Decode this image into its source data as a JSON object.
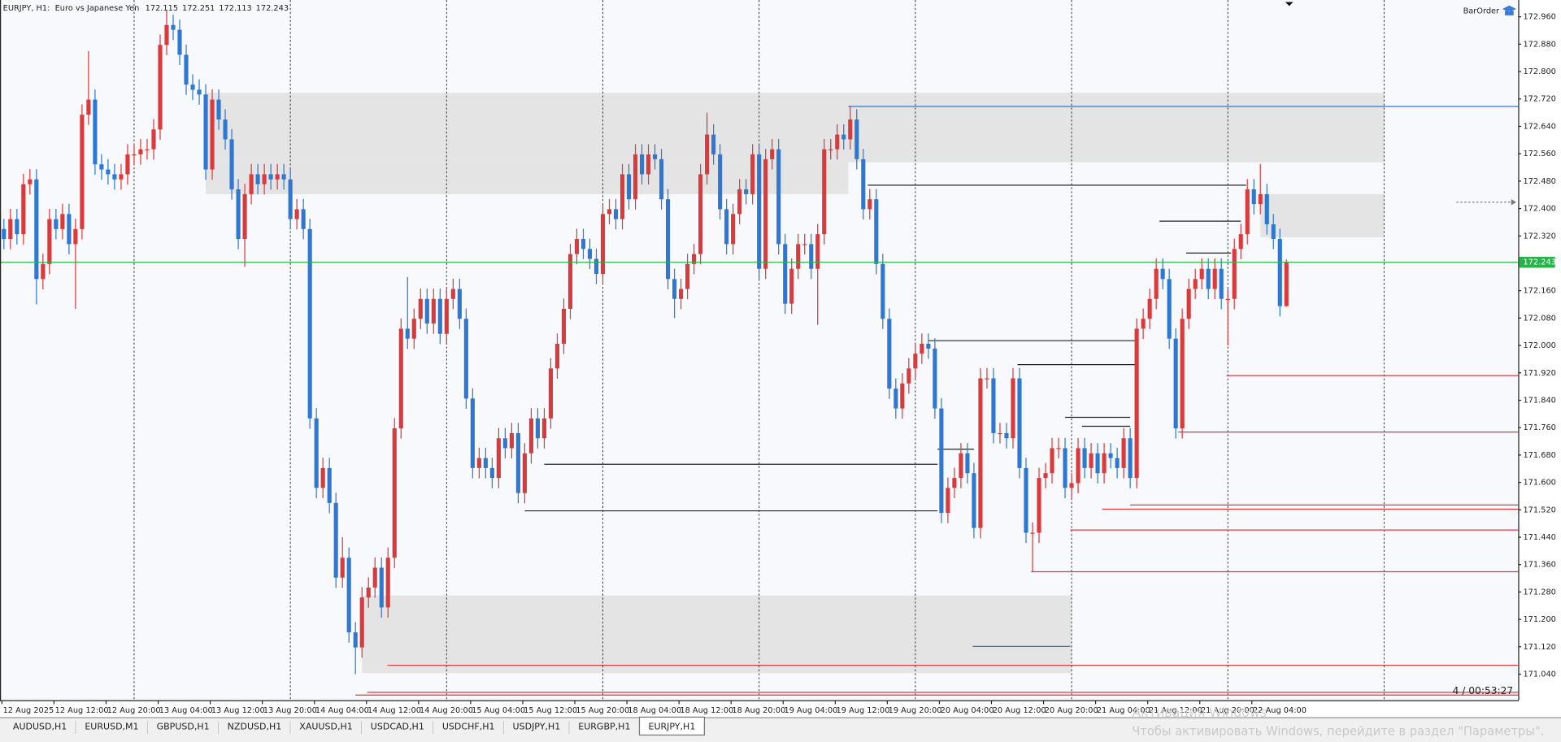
{
  "chart_data": {
    "type": "candlestick",
    "title": "EURJPY, H1:  Euro vs Japanese Yen",
    "button": "BarOrder",
    "bar_timer": "4 / 00:53:27",
    "up_color": "#d93a3c",
    "down_color": "#2e78d2",
    "zone_color": "#e4e4e4",
    "current_price_color": "#27b34a",
    "background": "#f7f9fc",
    "ylim": [
      170.964,
      173.009
    ],
    "yticks": [
      {
        "value": 172.96,
        "label": "172.960"
      },
      {
        "value": 172.88,
        "label": "172.880"
      },
      {
        "value": 172.8,
        "label": "172.800"
      },
      {
        "value": 172.72,
        "label": "172.720"
      },
      {
        "value": 172.64,
        "label": "172.640"
      },
      {
        "value": 172.56,
        "label": "172.560"
      },
      {
        "value": 172.48,
        "label": "172.480"
      },
      {
        "value": 172.4,
        "label": "172.400"
      },
      {
        "value": 172.32,
        "label": "172.320"
      },
      {
        "value": 172.16,
        "label": "172.160"
      },
      {
        "value": 172.08,
        "label": "172.080"
      },
      {
        "value": 172,
        "label": "172.000"
      },
      {
        "value": 171.92,
        "label": "171.920"
      },
      {
        "value": 171.84,
        "label": "171.840"
      },
      {
        "value": 171.76,
        "label": "171.760"
      },
      {
        "value": 171.68,
        "label": "171.680"
      },
      {
        "value": 171.6,
        "label": "171.600"
      },
      {
        "value": 171.52,
        "label": "171.520"
      },
      {
        "value": 171.44,
        "label": "171.440"
      },
      {
        "value": 171.36,
        "label": "171.360"
      },
      {
        "value": 171.28,
        "label": "171.280"
      },
      {
        "value": 171.2,
        "label": "171.200"
      },
      {
        "value": 171.12,
        "label": "171.120"
      },
      {
        "value": 171.04,
        "label": "171.040"
      }
    ],
    "xlim": [
      -0.6,
      232.6
    ],
    "xticks": [
      {
        "value": 0,
        "label": "12 Aug 2025"
      },
      {
        "value": 8,
        "label": "12 Aug 12:00"
      },
      {
        "value": 16,
        "label": "12 Aug 20:00"
      },
      {
        "value": 24,
        "label": "13 Aug 04:00"
      },
      {
        "value": 32,
        "label": "13 Aug 12:00"
      },
      {
        "value": 40,
        "label": "13 Aug 20:00"
      },
      {
        "value": 48,
        "label": "14 Aug 04:00"
      },
      {
        "value": 56,
        "label": "14 Aug 12:00"
      },
      {
        "value": 64,
        "label": "14 Aug 20:00"
      },
      {
        "value": 72,
        "label": "15 Aug 04:00"
      },
      {
        "value": 80,
        "label": "15 Aug 12:00"
      },
      {
        "value": 88,
        "label": "15 Aug 20:00"
      },
      {
        "value": 96,
        "label": "18 Aug 04:00"
      },
      {
        "value": 104,
        "label": "18 Aug 12:00"
      },
      {
        "value": 112,
        "label": "18 Aug 20:00"
      },
      {
        "value": 120,
        "label": "19 Aug 04:00"
      },
      {
        "value": 128,
        "label": "19 Aug 12:00"
      },
      {
        "value": 136,
        "label": "19 Aug 20:00"
      },
      {
        "value": 144,
        "label": "20 Aug 04:00"
      },
      {
        "value": 152,
        "label": "20 Aug 12:00"
      },
      {
        "value": 160,
        "label": "20 Aug 20:00"
      },
      {
        "value": 168,
        "label": "21 Aug 04:00"
      },
      {
        "value": 176,
        "label": "21 Aug 12:00"
      },
      {
        "value": 184,
        "label": "21 Aug 20:00"
      },
      {
        "value": 192,
        "label": "22 Aug 04:00"
      }
    ],
    "separators": [
      20,
      44,
      68,
      92,
      116,
      140,
      164,
      188,
      212
    ],
    "open": [
      172.34,
      172.311,
      172.369,
      172.325,
      172.471,
      172.485,
      172.194,
      172.238,
      172.369,
      172.34,
      172.384,
      172.296,
      172.34,
      172.674,
      172.718,
      172.529,
      172.514,
      172.5,
      172.485,
      172.5,
      172.558,
      172.558,
      172.573,
      172.573,
      172.631,
      172.878,
      172.936,
      172.922,
      172.849,
      172.762,
      172.747,
      172.733,
      172.514,
      172.718,
      172.66,
      172.602,
      172.456,
      172.311,
      172.442,
      172.5,
      172.471,
      172.5,
      172.485,
      172.5,
      172.485,
      172.369,
      172.398,
      172.34,
      171.787,
      171.584,
      171.642,
      171.54,
      171.322,
      171.38,
      171.162,
      171.118,
      171.264,
      171.293,
      171.351,
      171.235,
      171.38,
      171.758,
      172.049,
      172.02,
      172.078,
      172.136,
      172.064,
      172.136,
      172.034,
      172.136,
      172.165,
      172.078,
      171.845,
      171.642,
      171.671,
      171.642,
      171.613,
      171.729,
      171.7,
      171.744,
      171.569,
      171.685,
      171.787,
      171.729,
      171.787,
      171.933,
      172.005,
      172.107,
      172.267,
      172.311,
      172.282,
      172.253,
      172.209,
      172.384,
      172.398,
      172.369,
      172.5,
      172.427,
      172.558,
      172.5,
      172.558,
      172.544,
      172.427,
      172.194,
      172.136,
      172.165,
      172.238,
      172.267,
      172.5,
      172.616,
      172.558,
      172.398,
      172.296,
      172.384,
      172.456,
      172.442,
      172.558,
      172.224,
      172.544,
      172.573,
      172.296,
      172.122,
      172.224,
      172.296,
      172.296,
      172.224,
      172.325,
      172.573,
      172.573,
      172.616,
      172.602,
      172.66,
      172.544,
      172.398,
      172.427,
      172.238,
      172.078,
      171.874,
      171.816,
      171.889,
      171.933,
      171.976,
      172.005,
      171.991,
      171.816,
      171.511,
      171.584,
      171.613,
      171.685,
      171.627,
      171.467,
      171.904,
      171.904,
      171.744,
      171.744,
      171.729,
      171.904,
      171.642,
      171.453,
      171.453,
      171.613,
      171.627,
      171.7,
      171.7,
      171.584,
      171.598,
      171.7,
      171.642,
      171.685,
      171.627,
      171.685,
      171.671,
      171.642,
      171.729,
      171.613,
      172.049,
      172.078,
      172.136,
      172.224,
      172.194,
      172.02,
      171.758,
      172.078,
      172.165,
      172.194,
      172.224,
      172.165,
      172.224,
      172.136,
      172.136,
      172.282,
      172.325,
      172.456,
      172.413,
      172.442,
      172.354,
      172.311,
      172.115
    ],
    "high": [
      172.37,
      172.399,
      172.399,
      172.501,
      172.515,
      172.515,
      172.268,
      172.399,
      172.399,
      172.414,
      172.414,
      172.37,
      172.704,
      172.86,
      172.748,
      172.559,
      172.544,
      172.53,
      172.53,
      172.588,
      172.588,
      172.603,
      172.603,
      172.661,
      172.908,
      172.98,
      172.966,
      172.952,
      172.879,
      172.792,
      172.777,
      172.763,
      172.748,
      172.748,
      172.69,
      172.632,
      172.486,
      172.472,
      172.53,
      172.53,
      172.53,
      172.53,
      172.53,
      172.53,
      172.515,
      172.428,
      172.428,
      172.37,
      171.817,
      171.672,
      171.672,
      171.57,
      171.44,
      171.41,
      171.192,
      171.294,
      171.323,
      171.381,
      171.381,
      171.41,
      171.788,
      172.079,
      172.2,
      172.108,
      172.166,
      172.166,
      172.166,
      172.166,
      172.166,
      172.195,
      172.195,
      172.108,
      171.875,
      171.701,
      171.701,
      171.672,
      171.759,
      171.759,
      171.774,
      171.774,
      171.715,
      171.817,
      171.817,
      171.817,
      171.963,
      172.035,
      172.137,
      172.297,
      172.341,
      172.341,
      172.312,
      172.283,
      172.414,
      172.428,
      172.428,
      172.53,
      172.53,
      172.588,
      172.588,
      172.588,
      172.588,
      172.574,
      172.457,
      172.224,
      172.195,
      172.268,
      172.297,
      172.53,
      172.68,
      172.646,
      172.588,
      172.428,
      172.414,
      172.486,
      172.486,
      172.588,
      172.588,
      172.574,
      172.603,
      172.603,
      172.326,
      172.254,
      172.326,
      172.326,
      172.326,
      172.355,
      172.603,
      172.603,
      172.646,
      172.646,
      172.7,
      172.69,
      172.574,
      172.457,
      172.457,
      172.268,
      172.108,
      171.904,
      171.919,
      171.963,
      172.006,
      172.035,
      172.035,
      172.021,
      171.846,
      171.614,
      171.643,
      171.715,
      171.715,
      171.657,
      171.934,
      171.934,
      171.934,
      171.774,
      171.774,
      171.934,
      171.934,
      171.672,
      171.483,
      171.643,
      171.657,
      171.73,
      171.73,
      171.73,
      171.628,
      171.73,
      171.73,
      171.715,
      171.715,
      171.715,
      171.715,
      171.701,
      171.759,
      171.759,
      172.079,
      172.108,
      172.166,
      172.254,
      172.254,
      172.224,
      172.05,
      172.108,
      172.195,
      172.224,
      172.254,
      172.254,
      172.254,
      172.254,
      172.166,
      172.312,
      172.355,
      172.486,
      172.486,
      172.53,
      172.472,
      172.384,
      172.341,
      172.251
    ],
    "low": [
      172.281,
      172.281,
      172.295,
      172.295,
      172.441,
      172.12,
      172.164,
      172.208,
      172.31,
      172.31,
      172.266,
      172.107,
      172.31,
      172.644,
      172.499,
      172.484,
      172.47,
      172.455,
      172.455,
      172.47,
      172.528,
      172.528,
      172.543,
      172.543,
      172.601,
      172.848,
      172.892,
      172.819,
      172.732,
      172.717,
      172.703,
      172.484,
      172.484,
      172.63,
      172.572,
      172.426,
      172.281,
      172.23,
      172.412,
      172.441,
      172.441,
      172.455,
      172.455,
      172.455,
      172.339,
      172.339,
      172.31,
      171.757,
      171.554,
      171.554,
      171.51,
      171.292,
      171.292,
      171.132,
      171.04,
      171.088,
      171.234,
      171.263,
      171.205,
      171.205,
      171.35,
      171.728,
      171.99,
      171.99,
      172.048,
      172.034,
      172.034,
      172.004,
      172.004,
      172.106,
      172.048,
      171.815,
      171.612,
      171.612,
      171.612,
      171.583,
      171.583,
      171.67,
      171.67,
      171.539,
      171.539,
      171.655,
      171.699,
      171.699,
      171.757,
      171.903,
      171.975,
      172.077,
      172.237,
      172.252,
      172.223,
      172.179,
      172.179,
      172.354,
      172.339,
      172.339,
      172.397,
      172.397,
      172.47,
      172.47,
      172.514,
      172.397,
      172.164,
      172.08,
      172.106,
      172.135,
      172.208,
      172.237,
      172.47,
      172.528,
      172.368,
      172.266,
      172.266,
      172.354,
      172.412,
      172.412,
      172.194,
      172.194,
      172.514,
      172.266,
      172.092,
      172.092,
      172.194,
      172.266,
      172.194,
      172.06,
      172.295,
      172.543,
      172.543,
      172.572,
      172.572,
      172.514,
      172.368,
      172.368,
      172.208,
      172.048,
      171.844,
      171.786,
      171.786,
      171.859,
      171.903,
      171.946,
      171.961,
      171.786,
      171.481,
      171.481,
      171.554,
      171.583,
      171.597,
      171.437,
      171.437,
      171.874,
      171.714,
      171.714,
      171.699,
      171.699,
      171.612,
      171.423,
      171.34,
      171.423,
      171.583,
      171.597,
      171.67,
      171.554,
      171.554,
      171.568,
      171.612,
      171.612,
      171.597,
      171.597,
      171.641,
      171.612,
      171.612,
      171.583,
      171.583,
      172.019,
      172.048,
      172.106,
      172.164,
      171.99,
      171.728,
      171.728,
      172.048,
      172.135,
      172.164,
      172.135,
      172.135,
      172.106,
      172.0,
      172.106,
      172.252,
      172.295,
      172.383,
      172.383,
      172.324,
      172.281,
      172.085,
      172.113
    ],
    "close": [
      172.311,
      172.369,
      172.325,
      172.471,
      172.485,
      172.194,
      172.238,
      172.369,
      172.34,
      172.384,
      172.296,
      172.34,
      172.674,
      172.718,
      172.529,
      172.514,
      172.5,
      172.485,
      172.5,
      172.558,
      172.558,
      172.573,
      172.573,
      172.631,
      172.878,
      172.936,
      172.922,
      172.849,
      172.762,
      172.747,
      172.733,
      172.514,
      172.718,
      172.66,
      172.602,
      172.456,
      172.311,
      172.442,
      172.5,
      172.471,
      172.5,
      172.485,
      172.5,
      172.485,
      172.369,
      172.398,
      172.34,
      171.787,
      171.584,
      171.642,
      171.54,
      171.322,
      171.38,
      171.162,
      171.118,
      171.264,
      171.293,
      171.351,
      171.235,
      171.38,
      171.758,
      172.049,
      172.02,
      172.078,
      172.136,
      172.064,
      172.136,
      172.034,
      172.136,
      172.165,
      172.078,
      171.845,
      171.642,
      171.671,
      171.642,
      171.613,
      171.729,
      171.7,
      171.744,
      171.569,
      171.685,
      171.787,
      171.729,
      171.787,
      171.933,
      172.005,
      172.107,
      172.267,
      172.311,
      172.282,
      172.253,
      172.209,
      172.384,
      172.398,
      172.369,
      172.5,
      172.427,
      172.558,
      172.5,
      172.558,
      172.544,
      172.427,
      172.194,
      172.136,
      172.165,
      172.238,
      172.267,
      172.5,
      172.616,
      172.558,
      172.398,
      172.296,
      172.384,
      172.456,
      172.442,
      172.558,
      172.224,
      172.544,
      172.573,
      172.296,
      172.122,
      172.224,
      172.296,
      172.296,
      172.224,
      172.325,
      172.573,
      172.573,
      172.616,
      172.602,
      172.66,
      172.544,
      172.398,
      172.427,
      172.238,
      172.078,
      171.874,
      171.816,
      171.889,
      171.933,
      171.976,
      172.005,
      171.991,
      171.816,
      171.511,
      171.584,
      171.613,
      171.685,
      171.627,
      171.467,
      171.904,
      171.904,
      171.744,
      171.744,
      171.729,
      171.904,
      171.642,
      171.453,
      171.453,
      171.613,
      171.627,
      171.7,
      171.7,
      171.584,
      171.598,
      171.7,
      171.642,
      171.685,
      171.627,
      171.685,
      171.671,
      171.642,
      171.729,
      171.613,
      172.049,
      172.078,
      172.136,
      172.224,
      172.194,
      172.02,
      171.758,
      172.078,
      172.165,
      172.194,
      172.224,
      172.165,
      172.224,
      172.136,
      172.136,
      172.282,
      172.325,
      172.456,
      172.413,
      172.442,
      172.354,
      172.311,
      172.115,
      172.243
    ],
    "zones": [
      {
        "x": [
          31,
          212
        ],
        "y": [
          172.535,
          172.738
        ]
      },
      {
        "x": [
          31,
          129.7
        ],
        "y": [
          172.442,
          172.535
        ]
      },
      {
        "x": [
          193,
          212
        ],
        "y": [
          172.316,
          172.442
        ]
      },
      {
        "x": [
          55,
          164
        ],
        "y": [
          171.043,
          171.27
        ]
      }
    ],
    "rays": [
      {
        "color": "#d93a3c",
        "from": 187.8,
        "price": 171.912
      },
      {
        "color": "#d93a3c",
        "from": 180.4,
        "price": 171.747
      },
      {
        "color": "#d93a3c",
        "from": 173,
        "price": 171.534
      },
      {
        "color": "#d93a3c",
        "from": 168.7,
        "price": 171.522
      },
      {
        "color": "#d93a3c",
        "from": 163.8,
        "price": 171.461
      },
      {
        "color": "#d93a3c",
        "from": 157.8,
        "price": 171.339
      },
      {
        "color": "#d93a3c",
        "from": 58.9,
        "price": 171.066
      },
      {
        "color": "#d93a3c",
        "from": 55.8,
        "price": 170.987
      },
      {
        "color": "#d93a3c",
        "from": 54,
        "price": 170.979
      },
      {
        "color": "#2e78d2",
        "from": 129.7,
        "price": 172.698
      }
    ],
    "segments": [
      {
        "color": "#2e78d2",
        "from": 148.8,
        "to": 163.8,
        "price": 171.121
      },
      {
        "color": "#222222",
        "from": 132.7,
        "to": 190.8,
        "price": 172.468
      },
      {
        "color": "#222222",
        "from": 177.5,
        "to": 190,
        "price": 172.363
      },
      {
        "color": "#222222",
        "from": 181.6,
        "to": 188.5,
        "price": 172.27
      },
      {
        "color": "#222222",
        "from": 142,
        "to": 174,
        "price": 172.014
      },
      {
        "color": "#222222",
        "from": 155.7,
        "to": 174,
        "price": 171.944
      },
      {
        "color": "#222222",
        "from": 163,
        "to": 173,
        "price": 171.79
      },
      {
        "color": "#222222",
        "from": 165.6,
        "to": 173,
        "price": 171.764
      },
      {
        "color": "#222222",
        "from": 83,
        "to": 143.4,
        "price": 171.653
      },
      {
        "color": "#222222",
        "from": 80,
        "to": 143.4,
        "price": 171.517
      },
      {
        "color": "#222222",
        "from": 143.4,
        "to": 149,
        "price": 171.697
      }
    ]
  },
  "tabs": [
    "AUDUSD,H1",
    "EURUSD,M1",
    "GBPUSD,H1",
    "NZDUSD,H1",
    "XAUUSD,H1",
    "USDCAD,H1",
    "USDCHF,H1",
    "USDJPY,H1",
    "EURGBP,H1",
    "EURJPY,H1"
  ],
  "active_tab": 9,
  "watermark": {
    "title": "Активация Windows",
    "text": "Чтобы активировать Windows, перейдите в раздел \"Параметры\"."
  }
}
